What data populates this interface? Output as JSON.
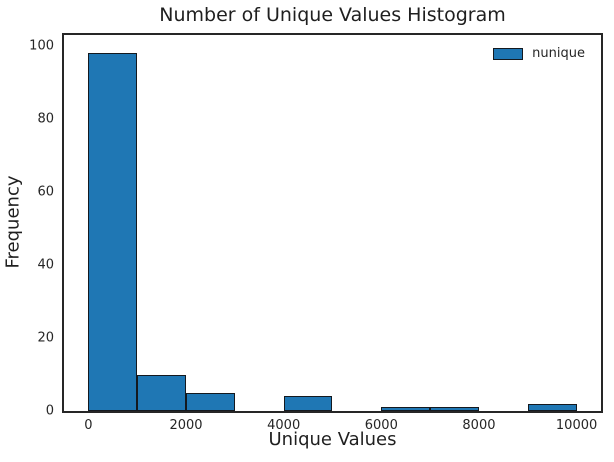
{
  "chart_data": {
    "type": "bar",
    "title": "Number of Unique Values Histogram",
    "xlabel": "Unique Values",
    "ylabel": "Frequency",
    "legend": [
      "nunique"
    ],
    "legend_position": "upper right",
    "bin_edges": [
      0,
      1000,
      2000,
      3000,
      4000,
      5000,
      6000,
      7000,
      8000,
      9000,
      10000
    ],
    "frequencies": [
      98,
      10,
      5,
      0,
      4,
      0,
      1,
      1,
      0,
      2
    ],
    "x_ticks": [
      0,
      2000,
      4000,
      6000,
      8000,
      10000
    ],
    "y_ticks": [
      0,
      20,
      40,
      60,
      80,
      100
    ],
    "xlim": [
      -500,
      10500
    ],
    "ylim": [
      0,
      103
    ],
    "grid": false,
    "colors": {
      "bar_fill": "#1f77b4",
      "bar_edge": "#14191f",
      "spine": "#262626",
      "text": "#262626"
    }
  }
}
